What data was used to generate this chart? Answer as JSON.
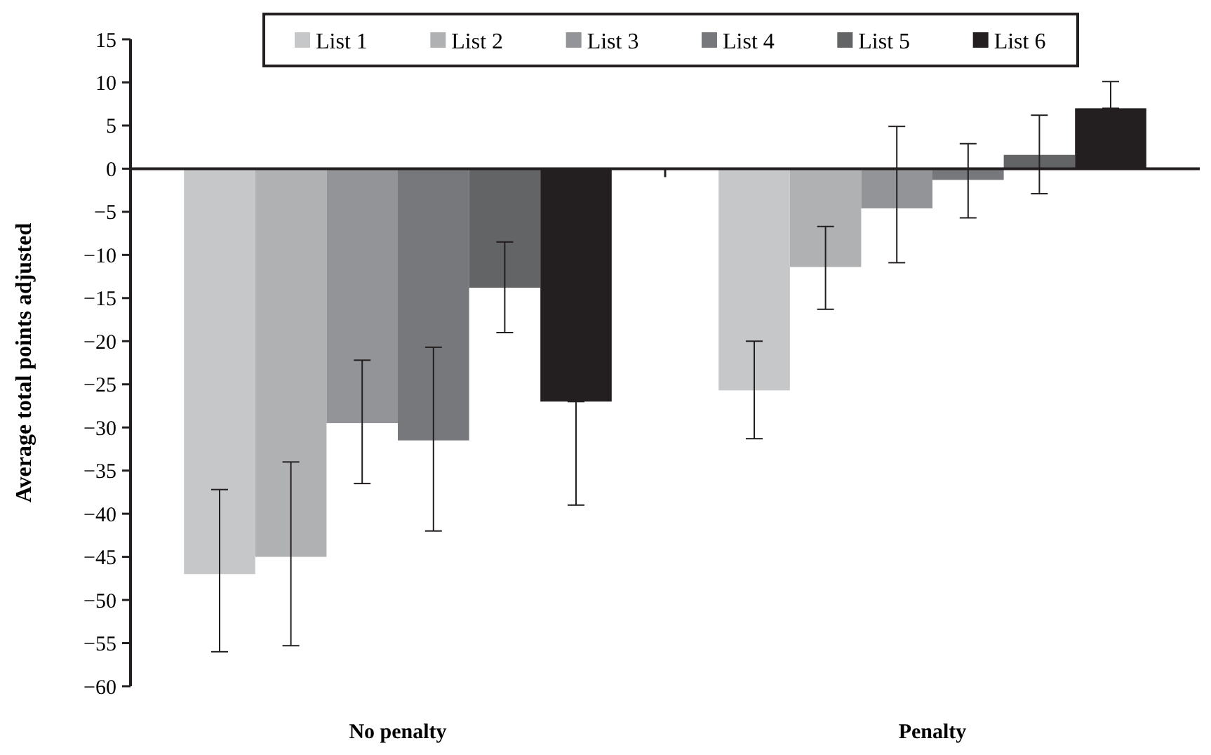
{
  "chart_data": {
    "type": "bar",
    "ylabel": "Average total points adjusted",
    "categories": [
      "No penalty",
      "Penalty"
    ],
    "series": [
      {
        "name": "List 1",
        "color": "#c6c7c9",
        "values": [
          -47,
          -25.7
        ],
        "errors": [
          [
            -56,
            -37.2
          ],
          [
            -31.3,
            -20
          ]
        ]
      },
      {
        "name": "List 2",
        "color": "#b0b1b3",
        "values": [
          -45,
          -11.4
        ],
        "errors": [
          [
            -55.3,
            -34
          ],
          [
            -16.3,
            -6.7
          ]
        ]
      },
      {
        "name": "List 3",
        "color": "#939497",
        "values": [
          -29.5,
          -4.6
        ],
        "errors": [
          [
            -36.5,
            -22.2
          ],
          [
            -10.9,
            4.9
          ]
        ]
      },
      {
        "name": "List 4",
        "color": "#77787b",
        "values": [
          -31.5,
          -1.3
        ],
        "errors": [
          [
            -42,
            -20.7
          ],
          [
            -5.7,
            2.9
          ]
        ]
      },
      {
        "name": "List 5",
        "color": "#636466",
        "values": [
          -13.8,
          1.6
        ],
        "errors": [
          [
            -19,
            -8.5
          ],
          [
            -2.9,
            6.2
          ]
        ]
      },
      {
        "name": "List 6",
        "color": "#231f20",
        "values": [
          -27,
          7
        ],
        "errors": [
          [
            -39,
            -27
          ],
          [
            7,
            10.1
          ]
        ]
      }
    ],
    "ylim": [
      -60,
      15
    ],
    "yticks": [
      15,
      10,
      5,
      0,
      -5,
      -10,
      -15,
      -20,
      -25,
      -30,
      -35,
      -40,
      -45,
      -50,
      -55,
      -60
    ],
    "legend": "top"
  }
}
